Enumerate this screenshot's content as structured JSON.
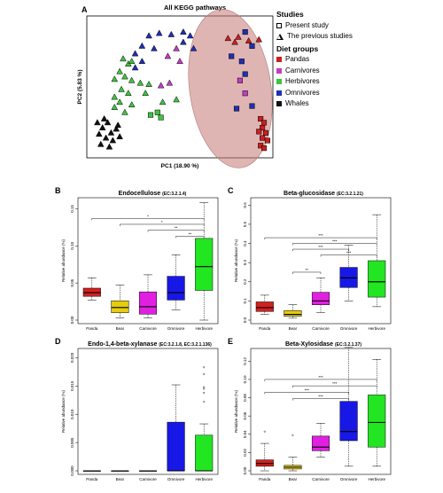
{
  "panel_a": {
    "letter": "A",
    "title": "All KEGG pathways",
    "xlabel": "PC1 (18.90 %)",
    "ylabel": "PC2 (5.83 %)",
    "legend": {
      "studies_title": "Studies",
      "present_label": "Present study",
      "previous_label": "The previous studies",
      "diet_title": "Diet groups",
      "groups": [
        {
          "label": "Pandas",
          "color": "#cc1f1f"
        },
        {
          "label": "Carnivores",
          "color": "#c43cc4"
        },
        {
          "label": "Herbivores",
          "color": "#3ec43e"
        },
        {
          "label": "Omnivores",
          "color": "#1f2fb4"
        },
        {
          "label": "Whales",
          "color": "#111111"
        }
      ]
    }
  },
  "chart_data": [
    {
      "type": "scatter",
      "title": "All KEGG pathways",
      "xlabel": "PC1 (18.90 %)",
      "ylabel": "PC2 (5.83 %)",
      "xlim": [
        0,
        100
      ],
      "ylim": [
        0,
        100
      ],
      "grid": false,
      "legend_position": "right",
      "series": [
        {
          "name": "Pandas",
          "color": "#cc1f1f",
          "points": [
            {
              "x": 78,
              "y": 88,
              "m": "t"
            },
            {
              "x": 82,
              "y": 85,
              "m": "t"
            },
            {
              "x": 84,
              "y": 89,
              "m": "t"
            },
            {
              "x": 90,
              "y": 86,
              "m": "t"
            },
            {
              "x": 96,
              "y": 87,
              "m": "t"
            },
            {
              "x": 97,
              "y": 25,
              "m": "s"
            },
            {
              "x": 99,
              "y": 22,
              "m": "s"
            },
            {
              "x": 98,
              "y": 18,
              "m": "s"
            },
            {
              "x": 100,
              "y": 14,
              "m": "s"
            },
            {
              "x": 98,
              "y": 10,
              "m": "s"
            },
            {
              "x": 96,
              "y": 15,
              "m": "s"
            },
            {
              "x": 101,
              "y": 8,
              "m": "s"
            },
            {
              "x": 97,
              "y": 4,
              "m": "s"
            },
            {
              "x": 99,
              "y": 2,
              "m": "s"
            }
          ]
        },
        {
          "name": "Carnivores",
          "color": "#c43cc4",
          "points": [
            {
              "x": 43,
              "y": 74,
              "m": "t"
            },
            {
              "x": 48,
              "y": 80,
              "m": "t"
            },
            {
              "x": 50,
              "y": 70,
              "m": "t"
            },
            {
              "x": 39,
              "y": 51,
              "m": "t"
            },
            {
              "x": 44,
              "y": 53,
              "m": "t"
            },
            {
              "x": 85,
              "y": 55,
              "m": "s"
            },
            {
              "x": 88,
              "y": 45,
              "m": "s"
            }
          ]
        },
        {
          "name": "Herbivores",
          "color": "#3ec43e",
          "points": [
            {
              "x": 17,
              "y": 72,
              "m": "t"
            },
            {
              "x": 20,
              "y": 68,
              "m": "t"
            },
            {
              "x": 22,
              "y": 70,
              "m": "t"
            },
            {
              "x": 15,
              "y": 62,
              "m": "t"
            },
            {
              "x": 18,
              "y": 58,
              "m": "t"
            },
            {
              "x": 12,
              "y": 56,
              "m": "t"
            },
            {
              "x": 22,
              "y": 55,
              "m": "t"
            },
            {
              "x": 27,
              "y": 53,
              "m": "t"
            },
            {
              "x": 16,
              "y": 48,
              "m": "t"
            },
            {
              "x": 20,
              "y": 45,
              "m": "t"
            },
            {
              "x": 12,
              "y": 42,
              "m": "t"
            },
            {
              "x": 15,
              "y": 38,
              "m": "t"
            },
            {
              "x": 22,
              "y": 36,
              "m": "t"
            },
            {
              "x": 32,
              "y": 52,
              "m": "t"
            },
            {
              "x": 30,
              "y": 45,
              "m": "t"
            },
            {
              "x": 40,
              "y": 38,
              "m": "t"
            },
            {
              "x": 48,
              "y": 40,
              "m": "t"
            },
            {
              "x": 18,
              "y": 30,
              "m": "t"
            },
            {
              "x": 12,
              "y": 34,
              "m": "t"
            },
            {
              "x": 33,
              "y": 28,
              "m": "s"
            },
            {
              "x": 37,
              "y": 30,
              "m": "s"
            },
            {
              "x": 39,
              "y": 26,
              "m": "s"
            }
          ]
        },
        {
          "name": "Omnivores",
          "color": "#1f2fb4",
          "points": [
            {
              "x": 32,
              "y": 90,
              "m": "t"
            },
            {
              "x": 38,
              "y": 92,
              "m": "t"
            },
            {
              "x": 45,
              "y": 91,
              "m": "t"
            },
            {
              "x": 52,
              "y": 93,
              "m": "t"
            },
            {
              "x": 56,
              "y": 90,
              "m": "t"
            },
            {
              "x": 28,
              "y": 82,
              "m": "t"
            },
            {
              "x": 35,
              "y": 80,
              "m": "t"
            },
            {
              "x": 52,
              "y": 85,
              "m": "t"
            },
            {
              "x": 58,
              "y": 80,
              "m": "t"
            },
            {
              "x": 24,
              "y": 76,
              "m": "t"
            },
            {
              "x": 28,
              "y": 70,
              "m": "t"
            },
            {
              "x": 24,
              "y": 65,
              "m": "t"
            },
            {
              "x": 88,
              "y": 93,
              "m": "s"
            },
            {
              "x": 92,
              "y": 82,
              "m": "s"
            },
            {
              "x": 80,
              "y": 74,
              "m": "s"
            },
            {
              "x": 86,
              "y": 70,
              "m": "s"
            },
            {
              "x": 88,
              "y": 60,
              "m": "s"
            },
            {
              "x": 92,
              "y": 35,
              "m": "s"
            },
            {
              "x": 83,
              "y": 33,
              "m": "s"
            }
          ]
        },
        {
          "name": "Whales",
          "color": "#111111",
          "points": [
            {
              "x": 2,
              "y": 22,
              "m": "t"
            },
            {
              "x": 5,
              "y": 18,
              "m": "t"
            },
            {
              "x": 8,
              "y": 22,
              "m": "t"
            },
            {
              "x": 3,
              "y": 13,
              "m": "t"
            },
            {
              "x": 7,
              "y": 10,
              "m": "t"
            },
            {
              "x": 10,
              "y": 14,
              "m": "t"
            },
            {
              "x": 13,
              "y": 17,
              "m": "t"
            },
            {
              "x": 11,
              "y": 8,
              "m": "t"
            },
            {
              "x": 15,
              "y": 11,
              "m": "t"
            },
            {
              "x": 4,
              "y": 5,
              "m": "t"
            },
            {
              "x": 9,
              "y": 3,
              "m": "t"
            },
            {
              "x": 14,
              "y": 20,
              "m": "t"
            },
            {
              "x": 6,
              "y": 25,
              "m": "t"
            }
          ]
        }
      ]
    },
    {
      "type": "box",
      "letter": "B",
      "title": "Endocellulose",
      "ec": "(EC:3.2.1.4)",
      "ylabel": "Relative abundance (%)",
      "ylim": [
        0,
        0.16
      ],
      "yticks": [
        0,
        0.05,
        0.1,
        0.15
      ],
      "ytick_labels": [
        "0.00",
        "0.05",
        "0.10",
        "0.15"
      ],
      "categories": [
        "Panda",
        "Bear",
        "Carnivore",
        "Omnivore",
        "Herbivore"
      ],
      "boxes": [
        {
          "min": 0.027,
          "q1": 0.032,
          "median": 0.037,
          "q3": 0.043,
          "max": 0.057,
          "color": "#d42020"
        },
        {
          "min": 0.003,
          "q1": 0.01,
          "median": 0.017,
          "q3": 0.026,
          "max": 0.047,
          "color": "#e6cc10"
        },
        {
          "min": 0.003,
          "q1": 0.008,
          "median": 0.018,
          "q3": 0.038,
          "max": 0.061,
          "color": "#e020e0"
        },
        {
          "min": 0.014,
          "q1": 0.027,
          "median": 0.037,
          "q3": 0.059,
          "max": 0.088,
          "color": "#1818e6"
        },
        {
          "min": 0.0,
          "q1": 0.04,
          "median": 0.072,
          "q3": 0.11,
          "max": 0.158,
          "color": "#22e622"
        }
      ],
      "significance": [
        {
          "from": "Panda",
          "to": "Herbivore",
          "label": "*",
          "y": 0.137
        },
        {
          "from": "Bear",
          "to": "Herbivore",
          "label": "*",
          "y": 0.129
        },
        {
          "from": "Carnivore",
          "to": "Herbivore",
          "label": "**",
          "y": 0.121
        },
        {
          "from": "Omnivore",
          "to": "Herbivore",
          "label": "**",
          "y": 0.113
        }
      ]
    },
    {
      "type": "box",
      "letter": "C",
      "title": "Beta-glucosidase",
      "ec": "(EC:3.2.1.21)",
      "ylabel": "Relative abundance (%)",
      "ylim": [
        0,
        0.62
      ],
      "yticks": [
        0,
        0.1,
        0.2,
        0.3,
        0.4,
        0.5,
        0.6
      ],
      "ytick_labels": [
        "0.0",
        "0.1",
        "0.2",
        "0.3",
        "0.4",
        "0.5",
        "0.6"
      ],
      "categories": [
        "Panda",
        "Bear",
        "Carnivore",
        "Omnivore",
        "Herbivore"
      ],
      "boxes": [
        {
          "min": 0.03,
          "q1": 0.045,
          "median": 0.065,
          "q3": 0.095,
          "max": 0.13,
          "color": "#d42020"
        },
        {
          "min": 0.01,
          "q1": 0.02,
          "median": 0.03,
          "q3": 0.05,
          "max": 0.08,
          "color": "#e6cc10"
        },
        {
          "min": 0.04,
          "q1": 0.08,
          "median": 0.1,
          "q3": 0.145,
          "max": 0.22,
          "color": "#e020e0"
        },
        {
          "min": 0.1,
          "q1": 0.17,
          "median": 0.22,
          "q3": 0.275,
          "max": 0.39,
          "color": "#1818e6"
        },
        {
          "min": 0.07,
          "q1": 0.12,
          "median": 0.2,
          "q3": 0.31,
          "max": 0.55,
          "color": "#22e622"
        }
      ],
      "significance": [
        {
          "from": "Panda",
          "to": "Herbivore",
          "label": "***",
          "y": 0.43
        },
        {
          "from": "Bear",
          "to": "Herbivore",
          "label": "***",
          "y": 0.4
        },
        {
          "from": "Bear",
          "to": "Omnivore",
          "label": "***",
          "y": 0.37
        },
        {
          "from": "Carnivore",
          "to": "Herbivore",
          "label": "***",
          "y": 0.34
        },
        {
          "from": "Bear",
          "to": "Carnivore",
          "label": "**",
          "y": 0.25
        }
      ]
    },
    {
      "type": "box",
      "letter": "D",
      "title": "Endo-1,4-beta-xylanase",
      "ec": "(EC:3.2.1.8, EC:3.2.1.136)",
      "ylabel": "Relative abundance (%)",
      "ylim": [
        0,
        0.021
      ],
      "yticks": [
        0,
        0.005,
        0.01,
        0.015,
        0.02
      ],
      "ytick_labels": [
        "0.000",
        "0.005",
        "0.010",
        "0.015",
        "0.020"
      ],
      "categories": [
        "Panda",
        "Bear",
        "Carnivore",
        "Omnivore",
        "Herbivore"
      ],
      "boxes": [
        {
          "min": 0,
          "q1": 0,
          "median": 0,
          "q3": 0,
          "max": 0,
          "color": "#d42020"
        },
        {
          "min": 0,
          "q1": 0,
          "median": 0,
          "q3": 0,
          "max": 0,
          "color": "#e6cc10"
        },
        {
          "min": 0,
          "q1": 0,
          "median": 0,
          "q3": 0,
          "max": 0,
          "color": "#e020e0"
        },
        {
          "min": 0,
          "q1": 0,
          "median": 0,
          "q3": 0.0086,
          "max": 0.0152,
          "color": "#1818e6"
        },
        {
          "min": 0,
          "q1": 0,
          "median": 0,
          "q3": 0.0063,
          "max": 0.0083,
          "color": "#22e622"
        }
      ],
      "outliers": [
        {
          "box": "Herbivore",
          "values": [
            0.0122,
            0.0138,
            0.0145,
            0.0148,
            0.0171,
            0.0183
          ]
        }
      ]
    },
    {
      "type": "box",
      "letter": "E",
      "title": "Beta-Xylosidase",
      "ec": "(EC:3.2.1.37)",
      "ylabel": "Relative abundance (%)",
      "ylim": [
        0,
        0.13
      ],
      "yticks": [
        0,
        0.02,
        0.04,
        0.06,
        0.08,
        0.1,
        0.12
      ],
      "ytick_labels": [
        "0.00",
        "0.02",
        "0.04",
        "0.06",
        "0.08",
        "0.10",
        "0.12"
      ],
      "categories": [
        "Panda",
        "Bear",
        "Carnivore",
        "Omnivore",
        "Herbivore"
      ],
      "boxes": [
        {
          "min": 0,
          "q1": 0.005,
          "median": 0.008,
          "q3": 0.012,
          "max": 0.03,
          "color": "#d42020"
        },
        {
          "min": 0,
          "q1": 0.002,
          "median": 0.004,
          "q3": 0.006,
          "max": 0.015,
          "color": "#e6cc10"
        },
        {
          "min": 0.015,
          "q1": 0.022,
          "median": 0.026,
          "q3": 0.038,
          "max": 0.052,
          "color": "#e020e0"
        },
        {
          "min": 0.005,
          "q1": 0.033,
          "median": 0.043,
          "q3": 0.076,
          "max": 0.135,
          "color": "#1818e6"
        },
        {
          "min": 0.005,
          "q1": 0.026,
          "median": 0.053,
          "q3": 0.083,
          "max": 0.122,
          "color": "#22e622"
        }
      ],
      "outliers": [
        {
          "box": "Panda",
          "values": [
            0.043
          ]
        },
        {
          "box": "Bear",
          "values": [
            0.039
          ]
        }
      ],
      "significance": [
        {
          "from": "Panda",
          "to": "Herbivore",
          "label": "***",
          "y": 0.1
        },
        {
          "from": "Bear",
          "to": "Herbivore",
          "label": "***",
          "y": 0.093
        },
        {
          "from": "Panda",
          "to": "Omnivore",
          "label": "***",
          "y": 0.086
        },
        {
          "from": "Bear",
          "to": "Omnivore",
          "label": "***",
          "y": 0.079
        }
      ]
    }
  ]
}
